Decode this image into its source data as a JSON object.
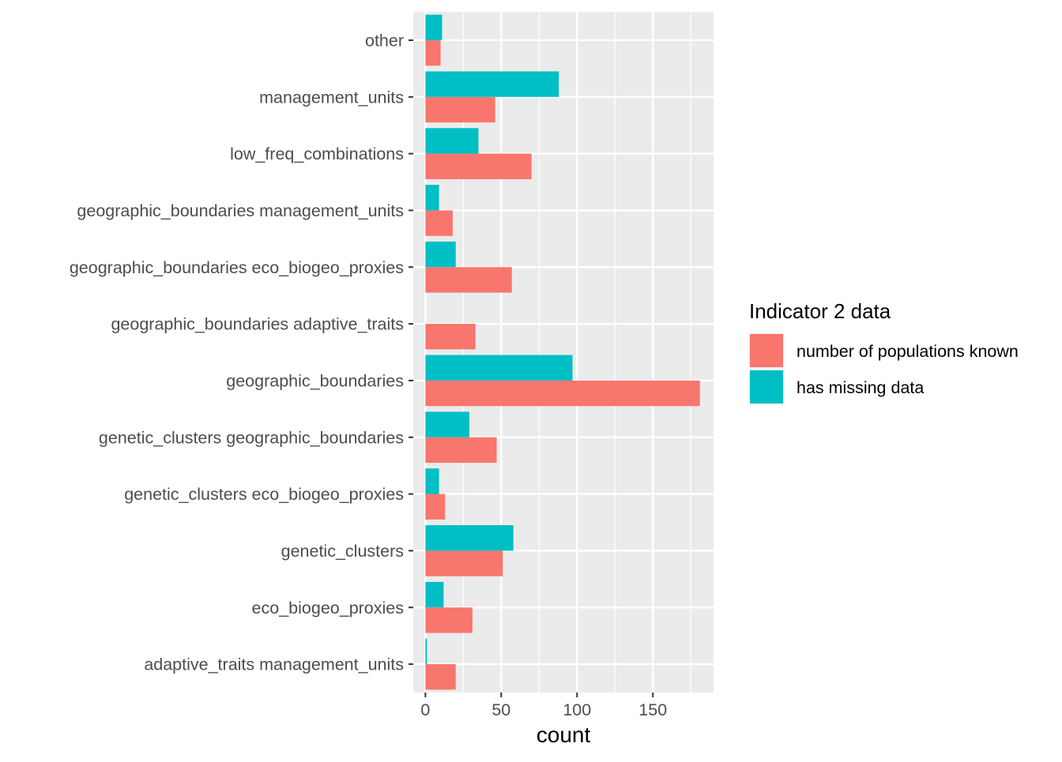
{
  "chart_data": {
    "type": "bar",
    "orientation": "horizontal",
    "categories": [
      "other",
      "management_units",
      "low_freq_combinations",
      "geographic_boundaries management_units",
      "geographic_boundaries eco_biogeo_proxies",
      "geographic_boundaries adaptive_traits",
      "geographic_boundaries",
      "genetic_clusters geographic_boundaries",
      "genetic_clusters eco_biogeo_proxies",
      "genetic_clusters",
      "eco_biogeo_proxies",
      "adaptive_traits management_units"
    ],
    "series": [
      {
        "name": "number of populations known",
        "color": "#F8766D",
        "values": [
          10,
          46,
          70,
          18,
          57,
          33,
          181,
          47,
          13,
          51,
          31,
          20
        ]
      },
      {
        "name": "has missing data",
        "color": "#00BFC4",
        "values": [
          11,
          88,
          35,
          9,
          20,
          0,
          97,
          29,
          9,
          58,
          12,
          1
        ]
      }
    ],
    "xlabel": "count",
    "ylabel": "",
    "xlim": [
      -8,
      190
    ],
    "xticks": [
      0,
      50,
      100,
      150
    ],
    "grid": true,
    "legend": {
      "title": "Indicator 2 data",
      "position": "right"
    }
  }
}
